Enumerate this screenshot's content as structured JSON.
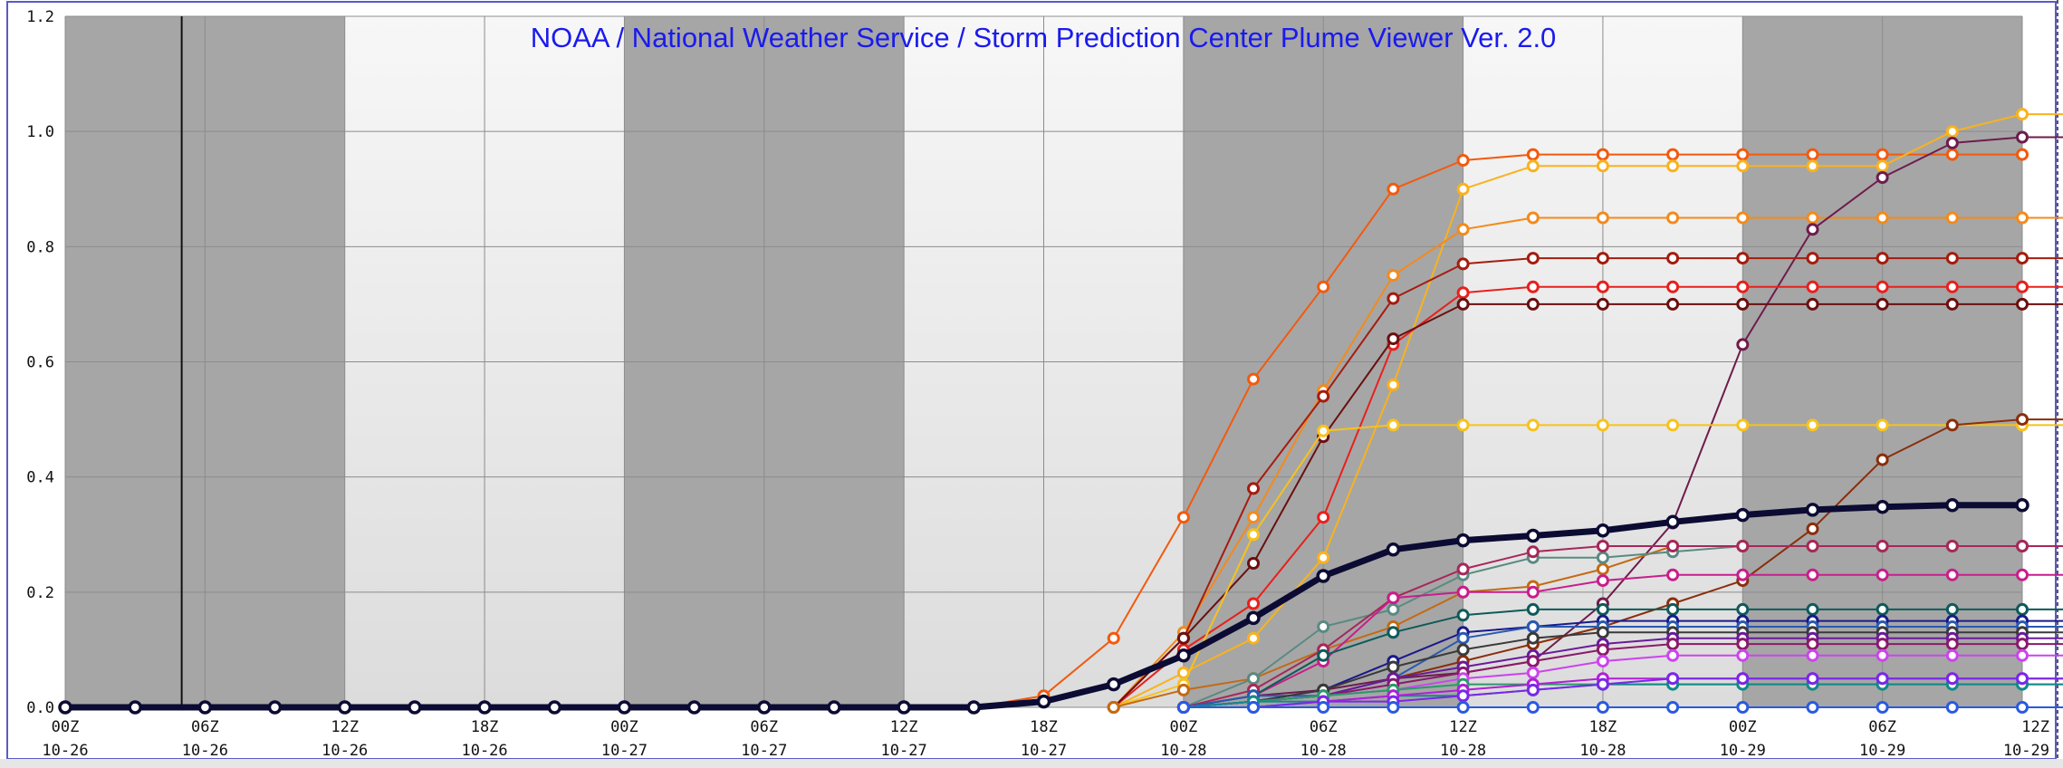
{
  "title": "NOAA / National Weather Service / Storm Prediction Center Plume Viewer Ver. 2.0",
  "colors": {
    "title": "#1a1aee",
    "axis_text": "#111111",
    "mean": "#0b0b33"
  },
  "chart_data": {
    "type": "line",
    "ylim": [
      0,
      1.2
    ],
    "y_ticks": [
      "0.0",
      "0.2",
      "0.4",
      "0.6",
      "0.8",
      "1.0",
      "1.2"
    ],
    "x_ticks": [
      {
        "hour": "00Z",
        "date": "10-26"
      },
      {
        "hour": "06Z",
        "date": "10-26"
      },
      {
        "hour": "12Z",
        "date": "10-26"
      },
      {
        "hour": "18Z",
        "date": "10-26"
      },
      {
        "hour": "00Z",
        "date": "10-27"
      },
      {
        "hour": "06Z",
        "date": "10-27"
      },
      {
        "hour": "12Z",
        "date": "10-27"
      },
      {
        "hour": "18Z",
        "date": "10-27"
      },
      {
        "hour": "00Z",
        "date": "10-28"
      },
      {
        "hour": "06Z",
        "date": "10-28"
      },
      {
        "hour": "12Z",
        "date": "10-28"
      },
      {
        "hour": "18Z",
        "date": "10-28"
      },
      {
        "hour": "00Z",
        "date": "10-29"
      },
      {
        "hour": "06Z",
        "date": "10-29"
      },
      {
        "hour": "12Z",
        "date": "10-29"
      }
    ],
    "x_hours": [
      0,
      3,
      6,
      9,
      12,
      15,
      18,
      21,
      24,
      27,
      30,
      33,
      36,
      39,
      42,
      45,
      48,
      51,
      54,
      57,
      60,
      63,
      66,
      69,
      72,
      75,
      78,
      81,
      84
    ],
    "night_shading": [
      [
        0,
        12
      ],
      [
        24,
        36
      ],
      [
        48,
        60
      ],
      [
        72,
        84
      ]
    ],
    "current_time_hour": 5,
    "grid": true,
    "series": [
      {
        "color": "#f25a0e",
        "width": 2,
        "start": 39,
        "values": [
          0,
          0.02,
          0.12,
          0.33,
          0.57,
          0.73,
          0.9,
          0.95,
          0.96,
          0.96,
          0.96,
          0.96,
          0.96,
          0.96,
          0.96,
          0.96
        ]
      },
      {
        "color": "#f9b21e",
        "width": 2,
        "start": 45,
        "values": [
          0,
          0.06,
          0.12,
          0.26,
          0.56,
          0.9,
          0.94,
          0.94,
          0.94,
          0.94,
          0.94,
          0.94,
          1.0,
          1.03,
          1.03
        ]
      },
      {
        "color": "#f38a1c",
        "width": 2,
        "start": 45,
        "values": [
          0,
          0.13,
          0.33,
          0.55,
          0.75,
          0.83,
          0.85,
          0.85,
          0.85,
          0.85,
          0.85,
          0.85,
          0.85,
          0.85,
          0.85
        ]
      },
      {
        "color": "#6e1c4c",
        "width": 2,
        "start": 48,
        "values": [
          0,
          0.02,
          0.03,
          0.05,
          0.06,
          0.08,
          0.18,
          0.32,
          0.63,
          0.83,
          0.92,
          0.98,
          0.99,
          0.99
        ]
      },
      {
        "color": "#a51c0e",
        "width": 2,
        "start": 45,
        "values": [
          0,
          0.12,
          0.38,
          0.54,
          0.71,
          0.77,
          0.78,
          0.78,
          0.78,
          0.78,
          0.78,
          0.78,
          0.78,
          0.78,
          0.78
        ]
      },
      {
        "color": "#e8201c",
        "width": 2,
        "start": 45,
        "values": [
          0,
          0.1,
          0.18,
          0.33,
          0.63,
          0.72,
          0.73,
          0.73,
          0.73,
          0.73,
          0.73,
          0.73,
          0.73,
          0.73,
          0.73
        ]
      },
      {
        "color": "#6b0f0f",
        "width": 2,
        "start": 45,
        "values": [
          0,
          0.12,
          0.25,
          0.47,
          0.64,
          0.7,
          0.7,
          0.7,
          0.7,
          0.7,
          0.7,
          0.7,
          0.7,
          0.7,
          0.7
        ]
      },
      {
        "color": "#f7c21c",
        "width": 2,
        "start": 45,
        "values": [
          0,
          0.04,
          0.3,
          0.48,
          0.49,
          0.49,
          0.49,
          0.49,
          0.49,
          0.49,
          0.49,
          0.49,
          0.49,
          0.49,
          0.49
        ]
      },
      {
        "color": "#8a2e0c",
        "width": 2,
        "start": 48,
        "values": [
          0,
          0.01,
          0.02,
          0.05,
          0.08,
          0.11,
          0.14,
          0.18,
          0.22,
          0.31,
          0.43,
          0.49,
          0.5,
          0.5
        ]
      },
      {
        "color": "#c46a14",
        "width": 2,
        "start": 45,
        "values": [
          0,
          0.03,
          0.05,
          0.1,
          0.14,
          0.2,
          0.21,
          0.24,
          0.28,
          0.28,
          0.28,
          0.28,
          0.28,
          0.28,
          0.28
        ]
      },
      {
        "color": "#5a8a82",
        "width": 2,
        "start": 48,
        "values": [
          0,
          0.05,
          0.14,
          0.17,
          0.23,
          0.26,
          0.26,
          0.27,
          0.28,
          0.28,
          0.28,
          0.28,
          0.28,
          0.28
        ]
      },
      {
        "color": "#a6285a",
        "width": 2,
        "start": 48,
        "values": [
          0,
          0.03,
          0.1,
          0.19,
          0.24,
          0.27,
          0.28,
          0.28,
          0.28,
          0.28,
          0.28,
          0.28,
          0.28,
          0.28
        ]
      },
      {
        "color": "#c81e8c",
        "width": 2,
        "start": 48,
        "values": [
          0,
          0.02,
          0.08,
          0.19,
          0.2,
          0.2,
          0.22,
          0.23,
          0.23,
          0.23,
          0.23,
          0.23,
          0.23,
          0.23
        ]
      },
      {
        "color": "#0e5a5a",
        "width": 2,
        "start": 48,
        "values": [
          0,
          0.02,
          0.09,
          0.13,
          0.16,
          0.17,
          0.17,
          0.17,
          0.17,
          0.17,
          0.17,
          0.17,
          0.17,
          0.17
        ]
      },
      {
        "color": "#1a1a8c",
        "width": 2,
        "start": 48,
        "values": [
          0,
          0.01,
          0.03,
          0.08,
          0.13,
          0.14,
          0.15,
          0.15,
          0.15,
          0.15,
          0.15,
          0.15,
          0.15,
          0.15
        ]
      },
      {
        "color": "#2a5ab0",
        "width": 2,
        "start": 48,
        "values": [
          0,
          0.02,
          0.02,
          0.05,
          0.12,
          0.14,
          0.14,
          0.14,
          0.14,
          0.14,
          0.14,
          0.14,
          0.14,
          0.14
        ]
      },
      {
        "color": "#3a3a3a",
        "width": 2,
        "start": 48,
        "values": [
          0,
          0.01,
          0.03,
          0.07,
          0.1,
          0.12,
          0.13,
          0.13,
          0.13,
          0.13,
          0.13,
          0.13,
          0.13,
          0.13
        ]
      },
      {
        "color": "#6a1a9a",
        "width": 2,
        "start": 48,
        "values": [
          0,
          0.01,
          0.02,
          0.05,
          0.07,
          0.09,
          0.11,
          0.12,
          0.12,
          0.12,
          0.12,
          0.12,
          0.12,
          0.12
        ]
      },
      {
        "color": "#8a1a6a",
        "width": 2,
        "start": 48,
        "values": [
          0,
          0.01,
          0.02,
          0.04,
          0.06,
          0.08,
          0.1,
          0.11,
          0.11,
          0.11,
          0.11,
          0.11,
          0.11,
          0.11
        ]
      },
      {
        "color": "#cc44ee",
        "width": 2,
        "start": 48,
        "values": [
          0,
          0.01,
          0.02,
          0.03,
          0.05,
          0.06,
          0.08,
          0.09,
          0.09,
          0.09,
          0.09,
          0.09,
          0.09,
          0.09
        ]
      },
      {
        "color": "#2a9a6a",
        "width": 2,
        "start": 48,
        "values": [
          0,
          0.01,
          0.02,
          0.03,
          0.04,
          0.04,
          0.04,
          0.04,
          0.04,
          0.04,
          0.04,
          0.04,
          0.04,
          0.04
        ]
      },
      {
        "color": "#128a8a",
        "width": 2,
        "start": 48,
        "values": [
          0,
          0.01,
          0.01,
          0.02,
          0.02,
          0.03,
          0.04,
          0.04,
          0.04,
          0.04,
          0.04,
          0.04,
          0.04,
          0.04
        ]
      },
      {
        "color": "#b21ed8",
        "width": 2,
        "start": 48,
        "values": [
          0,
          0.0,
          0.01,
          0.02,
          0.03,
          0.04,
          0.05,
          0.05,
          0.05,
          0.05,
          0.05,
          0.05,
          0.05,
          0.05
        ]
      },
      {
        "color": "#7a28e8",
        "width": 2,
        "start": 48,
        "values": [
          0,
          0.0,
          0.01,
          0.01,
          0.02,
          0.03,
          0.04,
          0.05,
          0.05,
          0.05,
          0.05,
          0.05,
          0.05,
          0.05
        ]
      },
      {
        "color": "#2a5ae0",
        "width": 2,
        "start": 48,
        "values": [
          0,
          0,
          0,
          0,
          0,
          0,
          0,
          0,
          0,
          0,
          0,
          0,
          0,
          0
        ]
      },
      {
        "color": "#0b0b33",
        "width": 7,
        "start": 0,
        "mean": true,
        "values": [
          0,
          0,
          0,
          0,
          0,
          0,
          0,
          0,
          0,
          0,
          0,
          0,
          0,
          0,
          0.01,
          0.04,
          0.09,
          0.155,
          0.228,
          0.274,
          0.29,
          0.298,
          0.307,
          0.322,
          0.334,
          0.343,
          0.348,
          0.351,
          0.351
        ]
      }
    ]
  }
}
